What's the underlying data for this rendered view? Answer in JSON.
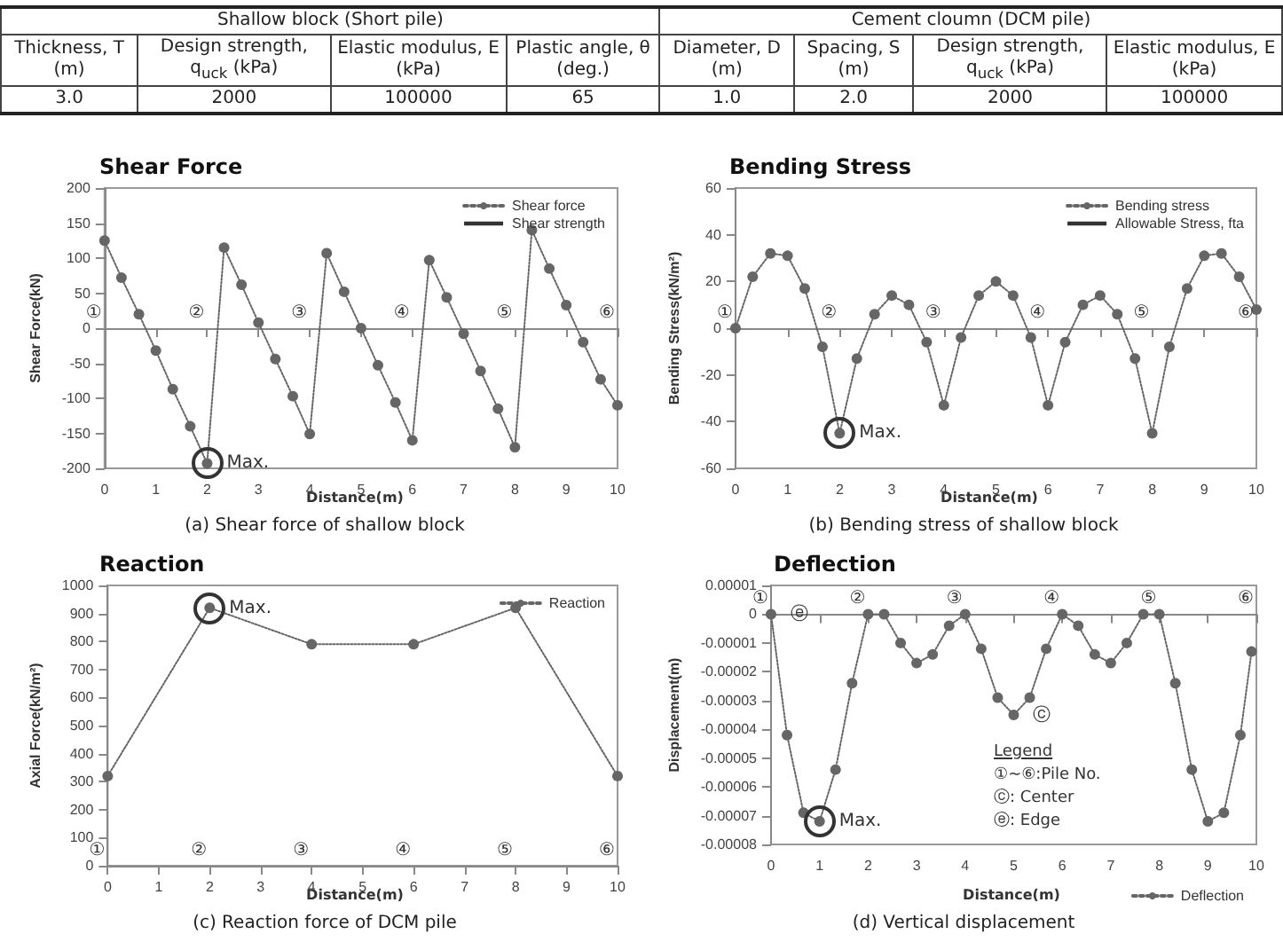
{
  "chart_data": [
    {
      "type": "other",
      "annotations": [
        "Shallow block (Short pile)",
        "Cement cloumn (DCM pile)",
        "Thickness, T (m)",
        "Design strength, q$_{uck}$ (kPa)",
        "Elastic modulus, E (kPa)",
        "Plastic angle, θ (deg.)",
        "Diameter, D (m)",
        "Spacing, S (m)",
        "Design strength, q$_{uck}$ (kPa)",
        "Elastic modulus, E (kPa)",
        "3.0",
        "2000",
        "100000",
        "65",
        "1.0",
        "2.0",
        "2000",
        "100000"
      ]
    },
    {
      "type": "line",
      "title": "(a) Shear force of shallow block",
      "subtitle": "Shear Force",
      "xlabel": "Distance(m)",
      "ylabel": "Shear Force(kN)",
      "x": [
        0,
        0.33,
        0.67,
        1,
        1.33,
        1.67,
        2,
        2.33,
        2.67,
        3,
        3.33,
        3.67,
        4,
        4.33,
        4.67,
        5,
        5.33,
        5.67,
        6,
        6.33,
        6.67,
        7,
        7.33,
        7.67,
        8,
        8.33,
        8.67,
        9,
        9.33,
        9.67,
        10
      ],
      "series": [
        {
          "name": "Shear force",
          "color": "#666666",
          "values": [
            125,
            72,
            20,
            -32,
            -87,
            -140,
            -193,
            115,
            62,
            8,
            -44,
            -97,
            -151,
            107,
            52,
            0,
            -53,
            -106,
            -160,
            97,
            44,
            -8,
            -61,
            -115,
            -170,
            140,
            85,
            33,
            -20,
            -73,
            -110
          ]
        },
        {
          "name": "Shear strength",
          "color": "#333333",
          "marker": "none",
          "line_style": "solid",
          "values": [
            null,
            null,
            null,
            null,
            null,
            null,
            null,
            null,
            null,
            null,
            null,
            null,
            null,
            null,
            null,
            null,
            null,
            null,
            null,
            null,
            null,
            null,
            null,
            null,
            null,
            null,
            null,
            null,
            null,
            null,
            null
          ]
        }
      ],
      "xlim": [
        0,
        10
      ],
      "xticks": [
        0,
        1,
        2,
        3,
        4,
        5,
        6,
        7,
        8,
        9,
        10
      ],
      "ylim": [
        -200,
        200
      ],
      "yticks": [
        -200,
        -150,
        -100,
        -50,
        0,
        50,
        100,
        150,
        200
      ],
      "annotations": [
        "①",
        "②",
        "③",
        "④",
        "⑤",
        "⑥",
        {
          "text": "Max.",
          "x": 2,
          "y": -193
        }
      ],
      "legend": "top right",
      "marker": "circle",
      "line_style": "dotted"
    },
    {
      "type": "line",
      "title": "(b) Bending stress of shallow block",
      "subtitle": "Bending Stress",
      "xlabel": "Distance(m)",
      "ylabel": "Bending Stress(kN/m²)",
      "x": [
        0,
        0.33,
        0.67,
        1,
        1.33,
        1.67,
        2,
        2.33,
        2.67,
        3,
        3.33,
        3.67,
        4,
        4.33,
        4.67,
        5,
        5.33,
        5.67,
        6,
        6.33,
        6.67,
        7,
        7.33,
        7.67,
        8,
        8.33,
        8.67,
        9,
        9.33,
        9.67,
        10
      ],
      "series": [
        {
          "name": "Bending stress",
          "color": "#666666",
          "values": [
            0,
            22,
            32,
            31,
            17,
            -8,
            -45,
            -13,
            6,
            14,
            10,
            -6,
            -33,
            -4,
            14,
            20,
            14,
            -4,
            -33,
            -6,
            10,
            14,
            6,
            -13,
            -45,
            -8,
            17,
            31,
            32,
            22,
            8
          ]
        },
        {
          "name": "Allowable Stress, fta",
          "color": "#333333",
          "marker": "none",
          "line_style": "solid",
          "values": [
            null,
            null,
            null,
            null,
            null,
            null,
            null,
            null,
            null,
            null,
            null,
            null,
            null,
            null,
            null,
            null,
            null,
            null,
            null,
            null,
            null,
            null,
            null,
            null,
            null,
            null,
            null,
            null,
            null,
            null,
            null
          ]
        }
      ],
      "xlim": [
        0,
        10
      ],
      "xticks": [
        0,
        1,
        2,
        3,
        4,
        5,
        6,
        7,
        8,
        9,
        10
      ],
      "ylim": [
        -60,
        60
      ],
      "yticks": [
        -60,
        -40,
        -20,
        0,
        20,
        40,
        60
      ],
      "annotations": [
        "①",
        "②",
        "③",
        "④",
        "⑤",
        "⑥",
        {
          "text": "Max.",
          "x": 2,
          "y": -45
        }
      ],
      "legend": "top right",
      "marker": "circle",
      "line_style": "dotted"
    },
    {
      "type": "line",
      "title": "(c) Reaction force of DCM pile",
      "subtitle": "Reaction",
      "xlabel": "Distance(m)",
      "ylabel": "Axial Force(kN/m²)",
      "x": [
        0,
        2,
        4,
        6,
        8,
        10
      ],
      "series": [
        {
          "name": "Reaction",
          "color": "#666666",
          "values": [
            320,
            920,
            790,
            790,
            920,
            320
          ]
        }
      ],
      "xlim": [
        0,
        10
      ],
      "xticks": [
        0,
        1,
        2,
        3,
        4,
        5,
        6,
        7,
        8,
        9,
        10
      ],
      "ylim": [
        0,
        1000
      ],
      "yticks": [
        0,
        100,
        200,
        300,
        400,
        500,
        600,
        700,
        800,
        900,
        1000
      ],
      "annotations": [
        "①",
        "②",
        "③",
        "④",
        "⑤",
        "⑥",
        {
          "text": "Max.",
          "x": 2,
          "y": 920
        }
      ],
      "legend": "top right",
      "marker": "circle",
      "line_style": "dotted"
    },
    {
      "type": "line",
      "title": "(d) Vertical displacement",
      "subtitle": "Deflection",
      "xlabel": "Distance(m)",
      "ylabel": "Displacement(m)",
      "x": [
        0,
        0.33,
        0.67,
        1,
        1.33,
        1.67,
        2,
        2.33,
        2.67,
        3,
        3.33,
        3.67,
        4,
        4.33,
        4.67,
        5,
        5.33,
        5.67,
        6,
        6.33,
        6.67,
        7,
        7.33,
        7.67,
        8,
        8.33,
        8.67,
        9,
        9.33,
        9.67,
        9.9
      ],
      "series": [
        {
          "name": "Deflection",
          "color": "#666666",
          "values": [
            0,
            -4.2e-05,
            -6.9e-05,
            -7.2e-05,
            -5.4e-05,
            -2.4e-05,
            0,
            0,
            -1e-05,
            -1.7e-05,
            -1.4e-05,
            -4e-06,
            0,
            -1.2e-05,
            -2.9e-05,
            -3.5e-05,
            -2.9e-05,
            -1.2e-05,
            0,
            -4e-06,
            -1.4e-05,
            -1.7e-05,
            -1e-05,
            0,
            0,
            -2.4e-05,
            -5.4e-05,
            -7.2e-05,
            -6.9e-05,
            -4.2e-05,
            -1.3e-05
          ]
        }
      ],
      "xlim": [
        0,
        10
      ],
      "xticks": [
        0,
        1,
        2,
        3,
        4,
        5,
        6,
        7,
        8,
        9,
        10
      ],
      "ylim": [
        -8e-05,
        1e-05
      ],
      "yticks": [
        {
          "value": -8e-05,
          "label": "-0.00008"
        },
        {
          "value": -7e-05,
          "label": "-0.00007"
        },
        {
          "value": -6e-05,
          "label": "-0.00006"
        },
        {
          "value": -5e-05,
          "label": "-0.00005"
        },
        {
          "value": -4e-05,
          "label": "-0.00004"
        },
        {
          "value": -3e-05,
          "label": "-0.00003"
        },
        {
          "value": -2e-05,
          "label": "-0.00002"
        },
        {
          "value": -1e-05,
          "label": "-0.00001"
        },
        0,
        {
          "value": 1e-05,
          "label": "0.00001"
        }
      ],
      "annotations": [
        "①",
        "②",
        "③",
        "④",
        "⑤",
        "⑥",
        {
          "text": "ⓔ",
          "x": 0,
          "y": 0
        },
        {
          "text": "ⓒ",
          "x": 5,
          "y": -3.5e-05
        },
        {
          "text": "Max.",
          "x": 1,
          "y": -7.2e-05
        }
      ],
      "legend": "bottom right",
      "marker": "circle",
      "line_style": "dotted"
    },
    {
      "type": "other",
      "annotations": [
        "Legend",
        "①~⑥:Pile No.",
        "ⓒ: Center",
        "ⓔ: Edge"
      ]
    }
  ]
}
